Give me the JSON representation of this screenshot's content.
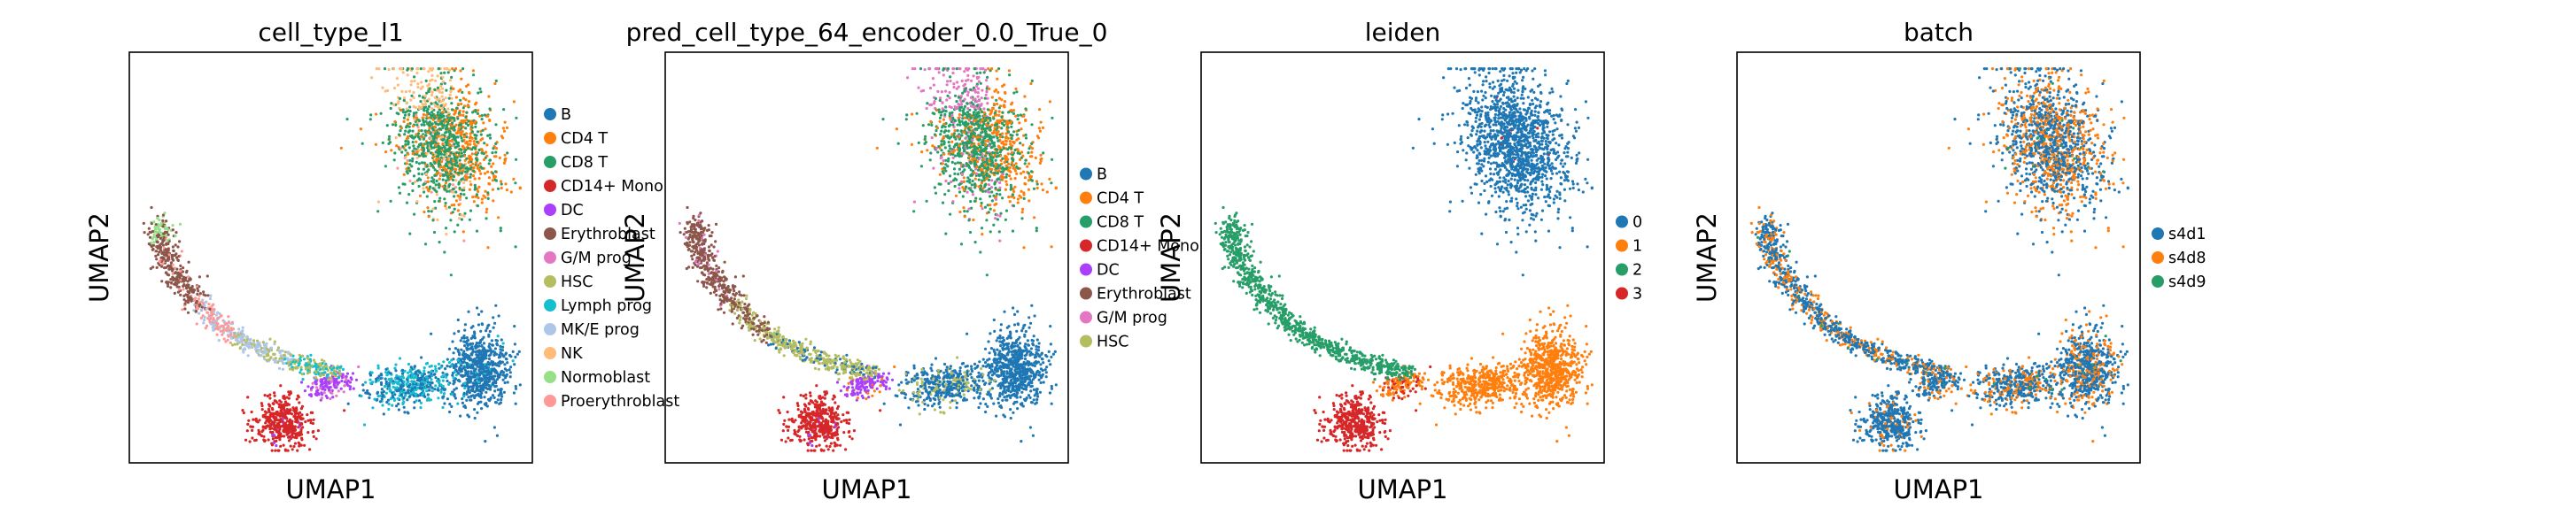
{
  "chart_data": [
    {
      "type": "scatter",
      "title": "cell_type_l1",
      "xlabel": "UMAP1",
      "ylabel": "UMAP2",
      "legend": [
        {
          "name": "B",
          "color": "#1f77b4"
        },
        {
          "name": "CD4 T",
          "color": "#ff7f0e"
        },
        {
          "name": "CD8 T",
          "color": "#279e68"
        },
        {
          "name": "CD14+ Mono",
          "color": "#d62728"
        },
        {
          "name": "DC",
          "color": "#aa40fc"
        },
        {
          "name": "Erythroblast",
          "color": "#8c564b"
        },
        {
          "name": "G/M prog",
          "color": "#e377c2"
        },
        {
          "name": "HSC",
          "color": "#b5bd61"
        },
        {
          "name": "Lymph prog",
          "color": "#17becf"
        },
        {
          "name": "MK/E prog",
          "color": "#aec7e8"
        },
        {
          "name": "NK",
          "color": "#ffbb78"
        },
        {
          "name": "Normoblast",
          "color": "#98df8a"
        },
        {
          "name": "Proerythroblast",
          "color": "#ff9896"
        }
      ],
      "legend_position": "right",
      "grid": false,
      "ticks": false
    },
    {
      "type": "scatter",
      "title": "pred_cell_type_64_encoder_0.0_True_0",
      "xlabel": "UMAP1",
      "ylabel": "UMAP2",
      "legend": [
        {
          "name": "B",
          "color": "#1f77b4"
        },
        {
          "name": "CD4 T",
          "color": "#ff7f0e"
        },
        {
          "name": "CD8 T",
          "color": "#279e68"
        },
        {
          "name": "CD14+ Mono",
          "color": "#d62728"
        },
        {
          "name": "DC",
          "color": "#aa40fc"
        },
        {
          "name": "Erythroblast",
          "color": "#8c564b"
        },
        {
          "name": "G/M prog",
          "color": "#e377c2"
        },
        {
          "name": "HSC",
          "color": "#b5bd61"
        }
      ],
      "legend_position": "right",
      "grid": false,
      "ticks": false
    },
    {
      "type": "scatter",
      "title": "leiden",
      "xlabel": "UMAP1",
      "ylabel": "UMAP2",
      "legend": [
        {
          "name": "0",
          "color": "#1f77b4"
        },
        {
          "name": "1",
          "color": "#ff7f0e"
        },
        {
          "name": "2",
          "color": "#279e68"
        },
        {
          "name": "3",
          "color": "#d62728"
        }
      ],
      "legend_position": "right",
      "grid": false,
      "ticks": false
    },
    {
      "type": "scatter",
      "title": "batch",
      "xlabel": "UMAP1",
      "ylabel": "UMAP2",
      "legend": [
        {
          "name": "s4d1",
          "color": "#1f77b4"
        },
        {
          "name": "s4d8",
          "color": "#ff7f0e"
        },
        {
          "name": "s4d9",
          "color": "#279e68"
        }
      ],
      "legend_position": "right",
      "grid": false,
      "ticks": false
    }
  ]
}
